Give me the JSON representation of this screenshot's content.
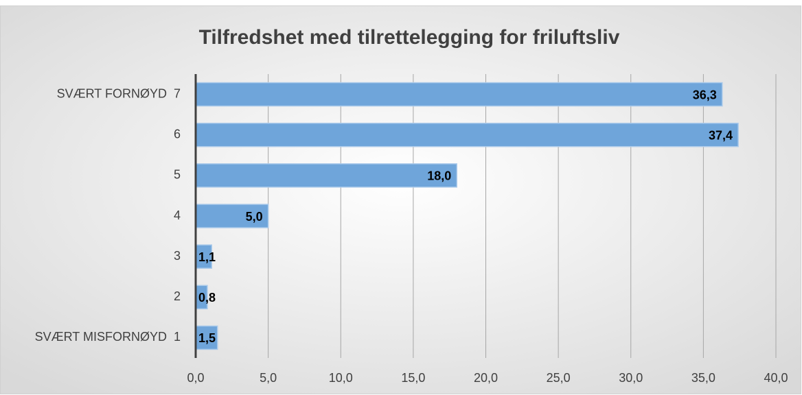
{
  "chart_data": {
    "type": "bar",
    "orientation": "horizontal",
    "title": "Tilfredshet med tilrettelegging for friluftsliv",
    "categories": [
      "SVÆRT FORNØYD  7",
      "6",
      "5",
      "4",
      "3",
      "2",
      "SVÆRT MISFORNØYD  1"
    ],
    "values": [
      36.3,
      37.4,
      18.0,
      5.0,
      1.1,
      0.8,
      1.5
    ],
    "value_labels": [
      "36,3",
      "37,4",
      "18,0",
      "5,0",
      "1,1",
      "0,8",
      "1,5"
    ],
    "color": "#6fa5da",
    "xlim": [
      0,
      40
    ],
    "xticks": [
      {
        "value": 0,
        "label": "0,0"
      },
      {
        "value": 5,
        "label": "5,0"
      },
      {
        "value": 10,
        "label": "10,0"
      },
      {
        "value": 15,
        "label": "15,0"
      },
      {
        "value": 20,
        "label": "20,0"
      },
      {
        "value": 25,
        "label": "25,0"
      },
      {
        "value": 30,
        "label": "30,0"
      },
      {
        "value": 35,
        "label": "35,0"
      },
      {
        "value": 40,
        "label": "40,0"
      }
    ],
    "grid": true
  }
}
